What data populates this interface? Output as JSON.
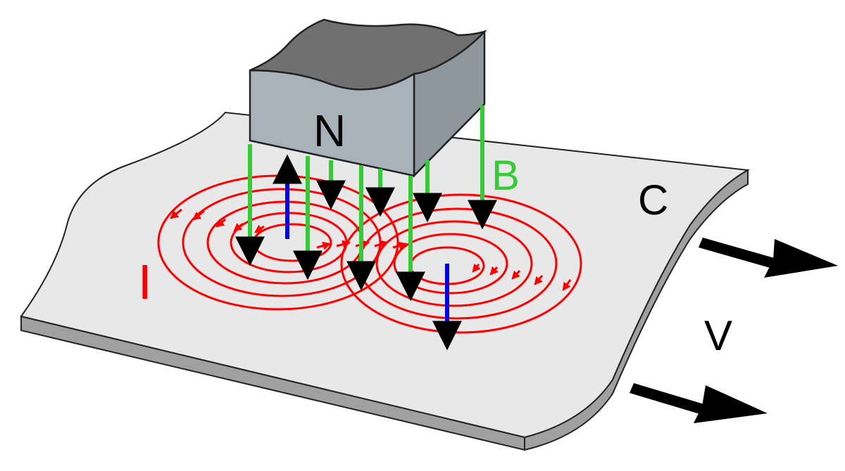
{
  "labels": {
    "magnet_pole": "N",
    "magnetic_field": "B",
    "conductor": "C",
    "velocity": "V",
    "current": "I"
  },
  "colors": {
    "plate_top": "#e8e8e8",
    "plate_edge": "#a0a0a0",
    "magnet_side": "#a8b2ba",
    "magnet_top": "#707070",
    "field_lines": "#33cc33",
    "eddy_current": "#ff0000",
    "force_vector": "#0000ee",
    "arrows": "#000000"
  },
  "icons": {
    "velocity_arrows": "right-arrow-icon",
    "field_arrowheads": "down-arrowhead-icon"
  }
}
